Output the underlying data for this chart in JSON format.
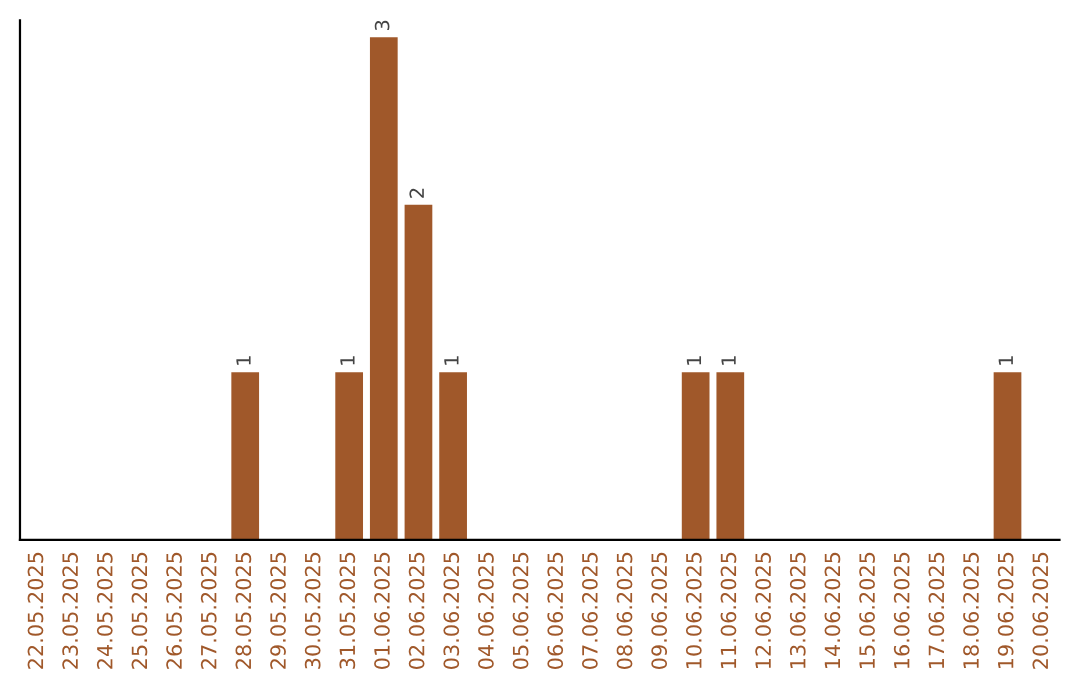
{
  "chart_data": {
    "type": "bar",
    "categories": [
      "22.05.2025",
      "23.05.2025",
      "24.05.2025",
      "25.05.2025",
      "26.05.2025",
      "27.05.2025",
      "28.05.2025",
      "29.05.2025",
      "30.05.2025",
      "31.05.2025",
      "01.06.2025",
      "02.06.2025",
      "03.06.2025",
      "04.06.2025",
      "05.06.2025",
      "06.06.2025",
      "07.06.2025",
      "08.06.2025",
      "09.06.2025",
      "10.06.2025",
      "11.06.2025",
      "12.06.2025",
      "13.06.2025",
      "14.06.2025",
      "15.06.2025",
      "16.06.2025",
      "17.06.2025",
      "18.06.2025",
      "19.06.2025",
      "20.06.2025"
    ],
    "values": [
      0,
      0,
      0,
      0,
      0,
      0,
      1,
      0,
      0,
      1,
      3,
      2,
      1,
      0,
      0,
      0,
      0,
      0,
      0,
      1,
      1,
      0,
      0,
      0,
      0,
      0,
      0,
      0,
      1,
      0
    ],
    "value_labels": [
      null,
      null,
      null,
      null,
      null,
      null,
      "1",
      null,
      null,
      "1",
      "3",
      "2",
      "1",
      null,
      null,
      null,
      null,
      null,
      null,
      "1",
      "1",
      null,
      null,
      null,
      null,
      null,
      null,
      null,
      "1",
      null
    ],
    "color": "#a0582a",
    "ylim": [
      0,
      3.1
    ],
    "tick_labels": "x"
  }
}
